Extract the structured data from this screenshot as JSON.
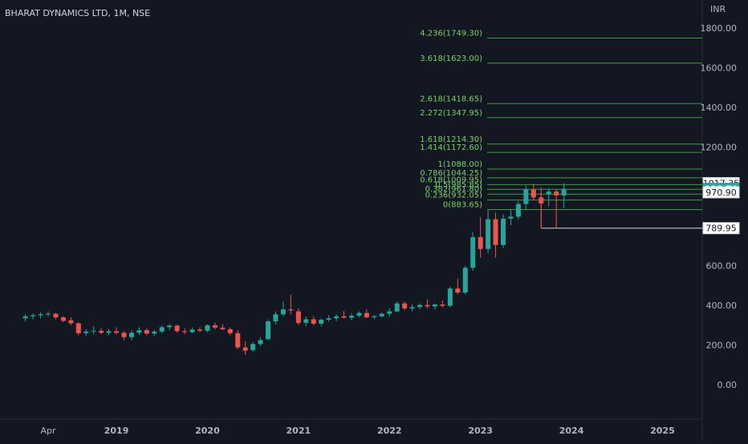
{
  "header": {
    "title": "BHARAT DYNAMICS LTD, 1M, NSE"
  },
  "axis": {
    "currency": "INR"
  },
  "colors": {
    "up": "#26a69a",
    "down": "#ef5350",
    "fib": "#4caf50",
    "fib_text": "#7ad06a",
    "bg": "#131722",
    "axis_text": "#b2b5be"
  },
  "chart_data": {
    "type": "candlestick",
    "title": "BHARAT DYNAMICS LTD, 1M, NSE",
    "ylabel": "INR",
    "ylim": [
      -200,
      1900
    ],
    "y_ticks": [
      0,
      200,
      400,
      600,
      1200,
      1400,
      1600,
      1800
    ],
    "y_tick_labels": [
      "0.00",
      "200.00",
      "400.00",
      "600.00",
      "1200.00",
      "1400.00",
      "1600.00",
      "1800.00"
    ],
    "x_ticks": [
      {
        "label": "Apr",
        "month": 3
      },
      {
        "label": "2019",
        "month": 12
      },
      {
        "label": "2020",
        "month": 24
      },
      {
        "label": "2021",
        "month": 36
      },
      {
        "label": "2022",
        "month": 48
      },
      {
        "label": "2023",
        "month": 60
      },
      {
        "label": "2024",
        "month": 72
      },
      {
        "label": "2025",
        "month": 84
      }
    ],
    "price_labels": [
      {
        "value": 1017.35,
        "text": "1017.35",
        "style": "outline"
      },
      {
        "value": 988.7,
        "text": "988.70",
        "style": "current"
      },
      {
        "value": 970.9,
        "text": "970.90",
        "style": "outline"
      },
      {
        "value": 789.95,
        "text": "789.95",
        "style": "outline"
      }
    ],
    "fib_levels": [
      {
        "ratio": "4.236",
        "value": 1749.3,
        "label": "4.236(1749.30)"
      },
      {
        "ratio": "3.618",
        "value": 1623.0,
        "label": "3.618(1623.00)"
      },
      {
        "ratio": "2.618",
        "value": 1418.65,
        "label": "2.618(1418.65)"
      },
      {
        "ratio": "2.272",
        "value": 1347.95,
        "label": "2.272(1347.95)"
      },
      {
        "ratio": "1.618",
        "value": 1214.3,
        "label": "1.618(1214.30)"
      },
      {
        "ratio": "1.414",
        "value": 1172.6,
        "label": "1.414(1172.60)"
      },
      {
        "ratio": "1",
        "value": 1088.0,
        "label": "1(1088.00)"
      },
      {
        "ratio": "0.786",
        "value": 1044.25,
        "label": "0.786(1044.25)"
      },
      {
        "ratio": "0.618",
        "value": 1009.95,
        "label": "0.618(1009.95)"
      },
      {
        "ratio": "0.5",
        "value": 985.85,
        "label": "0.5(985.85)"
      },
      {
        "ratio": "0.382",
        "value": 961.8,
        "label": "0.382(961.80)"
      },
      {
        "ratio": "0.236",
        "value": 932.05,
        "label": "0.236(932.05)"
      },
      {
        "ratio": "0",
        "value": 883.65,
        "label": "0(883.65)"
      }
    ],
    "candles": [
      {
        "m": 0,
        "o": 335,
        "h": 355,
        "l": 320,
        "c": 345
      },
      {
        "m": 1,
        "o": 345,
        "h": 360,
        "l": 330,
        "c": 350
      },
      {
        "m": 2,
        "o": 350,
        "h": 365,
        "l": 335,
        "c": 355
      },
      {
        "m": 3,
        "o": 355,
        "h": 370,
        "l": 345,
        "c": 358
      },
      {
        "m": 4,
        "o": 358,
        "h": 362,
        "l": 330,
        "c": 340
      },
      {
        "m": 5,
        "o": 340,
        "h": 345,
        "l": 315,
        "c": 322
      },
      {
        "m": 6,
        "o": 325,
        "h": 340,
        "l": 300,
        "c": 310
      },
      {
        "m": 7,
        "o": 310,
        "h": 315,
        "l": 250,
        "c": 260
      },
      {
        "m": 8,
        "o": 260,
        "h": 280,
        "l": 245,
        "c": 268
      },
      {
        "m": 9,
        "o": 268,
        "h": 295,
        "l": 255,
        "c": 272
      },
      {
        "m": 10,
        "o": 272,
        "h": 285,
        "l": 255,
        "c": 262
      },
      {
        "m": 11,
        "o": 262,
        "h": 280,
        "l": 250,
        "c": 270
      },
      {
        "m": 12,
        "o": 270,
        "h": 290,
        "l": 255,
        "c": 262
      },
      {
        "m": 13,
        "o": 262,
        "h": 270,
        "l": 225,
        "c": 240
      },
      {
        "m": 14,
        "o": 240,
        "h": 275,
        "l": 225,
        "c": 262
      },
      {
        "m": 15,
        "o": 262,
        "h": 290,
        "l": 250,
        "c": 275
      },
      {
        "m": 16,
        "o": 275,
        "h": 285,
        "l": 250,
        "c": 258
      },
      {
        "m": 17,
        "o": 258,
        "h": 275,
        "l": 245,
        "c": 268
      },
      {
        "m": 18,
        "o": 268,
        "h": 300,
        "l": 260,
        "c": 290
      },
      {
        "m": 19,
        "o": 290,
        "h": 305,
        "l": 275,
        "c": 298
      },
      {
        "m": 20,
        "o": 298,
        "h": 302,
        "l": 262,
        "c": 270
      },
      {
        "m": 21,
        "o": 270,
        "h": 285,
        "l": 255,
        "c": 265
      },
      {
        "m": 22,
        "o": 265,
        "h": 290,
        "l": 260,
        "c": 278
      },
      {
        "m": 23,
        "o": 278,
        "h": 290,
        "l": 265,
        "c": 272
      },
      {
        "m": 24,
        "o": 272,
        "h": 305,
        "l": 265,
        "c": 300
      },
      {
        "m": 25,
        "o": 300,
        "h": 315,
        "l": 280,
        "c": 288
      },
      {
        "m": 26,
        "o": 288,
        "h": 305,
        "l": 275,
        "c": 280
      },
      {
        "m": 27,
        "o": 280,
        "h": 290,
        "l": 250,
        "c": 260
      },
      {
        "m": 28,
        "o": 260,
        "h": 275,
        "l": 180,
        "c": 188
      },
      {
        "m": 29,
        "o": 188,
        "h": 220,
        "l": 150,
        "c": 172
      },
      {
        "m": 30,
        "o": 175,
        "h": 215,
        "l": 165,
        "c": 205
      },
      {
        "m": 31,
        "o": 205,
        "h": 240,
        "l": 195,
        "c": 225
      },
      {
        "m": 32,
        "o": 230,
        "h": 330,
        "l": 225,
        "c": 320
      },
      {
        "m": 33,
        "o": 320,
        "h": 370,
        "l": 305,
        "c": 355
      },
      {
        "m": 34,
        "o": 355,
        "h": 420,
        "l": 345,
        "c": 380
      },
      {
        "m": 35,
        "o": 380,
        "h": 455,
        "l": 355,
        "c": 375
      },
      {
        "m": 36,
        "o": 370,
        "h": 385,
        "l": 300,
        "c": 312
      },
      {
        "m": 37,
        "o": 312,
        "h": 345,
        "l": 295,
        "c": 330
      },
      {
        "m": 38,
        "o": 330,
        "h": 345,
        "l": 300,
        "c": 308
      },
      {
        "m": 39,
        "o": 308,
        "h": 335,
        "l": 295,
        "c": 328
      },
      {
        "m": 40,
        "o": 328,
        "h": 350,
        "l": 318,
        "c": 335
      },
      {
        "m": 41,
        "o": 335,
        "h": 355,
        "l": 320,
        "c": 345
      },
      {
        "m": 42,
        "o": 345,
        "h": 372,
        "l": 335,
        "c": 338
      },
      {
        "m": 43,
        "o": 338,
        "h": 360,
        "l": 325,
        "c": 348
      },
      {
        "m": 44,
        "o": 348,
        "h": 370,
        "l": 340,
        "c": 362
      },
      {
        "m": 45,
        "o": 362,
        "h": 380,
        "l": 335,
        "c": 340
      },
      {
        "m": 46,
        "o": 340,
        "h": 352,
        "l": 330,
        "c": 345
      },
      {
        "m": 47,
        "o": 345,
        "h": 365,
        "l": 340,
        "c": 358
      },
      {
        "m": 48,
        "o": 358,
        "h": 385,
        "l": 345,
        "c": 370
      },
      {
        "m": 49,
        "o": 370,
        "h": 420,
        "l": 365,
        "c": 410
      },
      {
        "m": 50,
        "o": 410,
        "h": 420,
        "l": 375,
        "c": 385
      },
      {
        "m": 51,
        "o": 385,
        "h": 405,
        "l": 370,
        "c": 392
      },
      {
        "m": 52,
        "o": 392,
        "h": 410,
        "l": 380,
        "c": 402
      },
      {
        "m": 53,
        "o": 402,
        "h": 430,
        "l": 385,
        "c": 395
      },
      {
        "m": 54,
        "o": 395,
        "h": 410,
        "l": 380,
        "c": 405
      },
      {
        "m": 55,
        "o": 405,
        "h": 425,
        "l": 390,
        "c": 398
      },
      {
        "m": 56,
        "o": 398,
        "h": 495,
        "l": 390,
        "c": 485
      },
      {
        "m": 57,
        "o": 485,
        "h": 535,
        "l": 455,
        "c": 465
      },
      {
        "m": 58,
        "o": 465,
        "h": 600,
        "l": 455,
        "c": 590
      },
      {
        "m": 59,
        "o": 590,
        "h": 770,
        "l": 575,
        "c": 745
      },
      {
        "m": 60,
        "o": 745,
        "h": 845,
        "l": 640,
        "c": 685
      },
      {
        "m": 61,
        "o": 685,
        "h": 880,
        "l": 665,
        "c": 835
      },
      {
        "m": 62,
        "o": 835,
        "h": 870,
        "l": 640,
        "c": 705
      },
      {
        "m": 63,
        "o": 705,
        "h": 860,
        "l": 690,
        "c": 838
      },
      {
        "m": 64,
        "o": 838,
        "h": 885,
        "l": 805,
        "c": 848
      },
      {
        "m": 65,
        "o": 848,
        "h": 925,
        "l": 835,
        "c": 912
      },
      {
        "m": 66,
        "o": 912,
        "h": 1005,
        "l": 880,
        "c": 985
      },
      {
        "m": 67,
        "o": 985,
        "h": 1015,
        "l": 930,
        "c": 945
      },
      {
        "m": 68,
        "o": 945,
        "h": 995,
        "l": 790,
        "c": 915
      },
      {
        "m": 69,
        "o": 960,
        "h": 990,
        "l": 900,
        "c": 975
      },
      {
        "m": 70,
        "o": 975,
        "h": 985,
        "l": 790,
        "c": 955
      },
      {
        "m": 71,
        "o": 955,
        "h": 1017,
        "l": 890,
        "c": 988.7
      }
    ]
  }
}
